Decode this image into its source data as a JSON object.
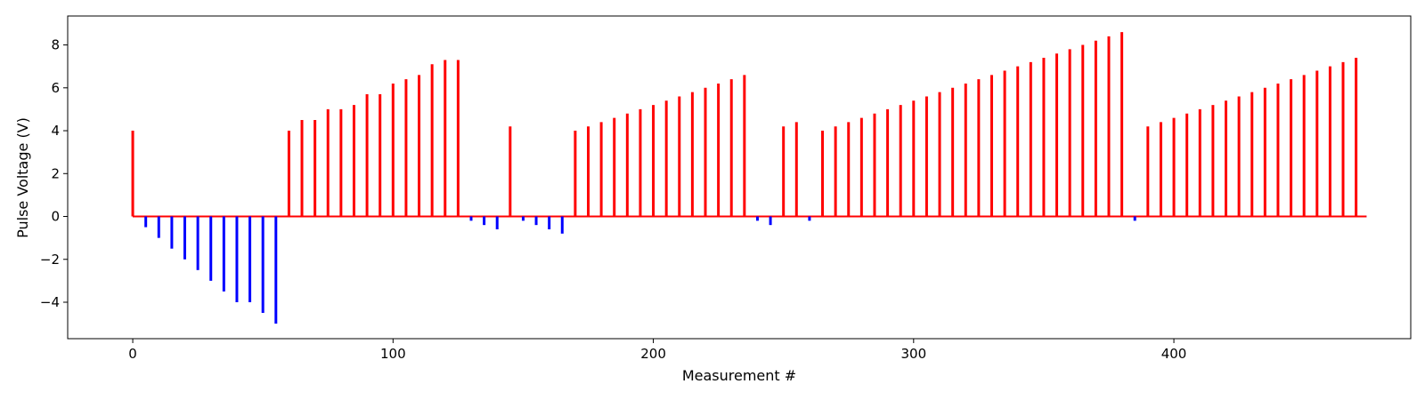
{
  "chart_data": {
    "type": "bar",
    "xlabel": "Measurement #",
    "ylabel": "Pulse Voltage (V)",
    "xlim": [
      -25,
      491
    ],
    "ylim": [
      -5.7,
      9.35
    ],
    "xticks": [
      0,
      100,
      200,
      300,
      400
    ],
    "xtick_labels": [
      "0",
      "100",
      "200",
      "300",
      "400"
    ],
    "yticks": [
      -4,
      -2,
      0,
      2,
      4,
      6,
      8
    ],
    "ytick_labels": [
      "−4",
      "−2",
      "0",
      "2",
      "4",
      "6",
      "8"
    ],
    "baseline_range": [
      0,
      474
    ],
    "colors": {
      "positive": "#ff0000",
      "negative": "#0000ff"
    },
    "pulses": [
      {
        "x": 0,
        "y": 4.0
      },
      {
        "x": 5,
        "y": -0.5
      },
      {
        "x": 10,
        "y": -1.0
      },
      {
        "x": 15,
        "y": -1.5
      },
      {
        "x": 20,
        "y": -2.0
      },
      {
        "x": 25,
        "y": -2.5
      },
      {
        "x": 30,
        "y": -3.0
      },
      {
        "x": 35,
        "y": -3.5
      },
      {
        "x": 40,
        "y": -4.0
      },
      {
        "x": 45,
        "y": -4.0
      },
      {
        "x": 50,
        "y": -4.5
      },
      {
        "x": 55,
        "y": -5.0
      },
      {
        "x": 60,
        "y": 4.0
      },
      {
        "x": 65,
        "y": 4.5
      },
      {
        "x": 70,
        "y": 4.5
      },
      {
        "x": 75,
        "y": 5.0
      },
      {
        "x": 80,
        "y": 5.0
      },
      {
        "x": 85,
        "y": 5.2
      },
      {
        "x": 90,
        "y": 5.7
      },
      {
        "x": 95,
        "y": 5.7
      },
      {
        "x": 100,
        "y": 6.2
      },
      {
        "x": 105,
        "y": 6.4
      },
      {
        "x": 110,
        "y": 6.6
      },
      {
        "x": 115,
        "y": 7.1
      },
      {
        "x": 120,
        "y": 7.3
      },
      {
        "x": 125,
        "y": 7.3
      },
      {
        "x": 130,
        "y": -0.2
      },
      {
        "x": 135,
        "y": -0.4
      },
      {
        "x": 140,
        "y": -0.6
      },
      {
        "x": 145,
        "y": 4.2
      },
      {
        "x": 150,
        "y": -0.2
      },
      {
        "x": 155,
        "y": -0.4
      },
      {
        "x": 160,
        "y": -0.6
      },
      {
        "x": 165,
        "y": -0.8
      },
      {
        "x": 170,
        "y": 4.0
      },
      {
        "x": 175,
        "y": 4.2
      },
      {
        "x": 180,
        "y": 4.4
      },
      {
        "x": 185,
        "y": 4.6
      },
      {
        "x": 190,
        "y": 4.8
      },
      {
        "x": 195,
        "y": 5.0
      },
      {
        "x": 200,
        "y": 5.2
      },
      {
        "x": 205,
        "y": 5.4
      },
      {
        "x": 210,
        "y": 5.6
      },
      {
        "x": 215,
        "y": 5.8
      },
      {
        "x": 220,
        "y": 6.0
      },
      {
        "x": 225,
        "y": 6.2
      },
      {
        "x": 230,
        "y": 6.4
      },
      {
        "x": 235,
        "y": 6.6
      },
      {
        "x": 240,
        "y": -0.2
      },
      {
        "x": 245,
        "y": -0.4
      },
      {
        "x": 250,
        "y": 4.2
      },
      {
        "x": 255,
        "y": 4.4
      },
      {
        "x": 260,
        "y": -0.2
      },
      {
        "x": 265,
        "y": 4.0
      },
      {
        "x": 270,
        "y": 4.2
      },
      {
        "x": 275,
        "y": 4.4
      },
      {
        "x": 280,
        "y": 4.6
      },
      {
        "x": 285,
        "y": 4.8
      },
      {
        "x": 290,
        "y": 5.0
      },
      {
        "x": 295,
        "y": 5.2
      },
      {
        "x": 300,
        "y": 5.4
      },
      {
        "x": 305,
        "y": 5.6
      },
      {
        "x": 310,
        "y": 5.8
      },
      {
        "x": 315,
        "y": 6.0
      },
      {
        "x": 320,
        "y": 6.2
      },
      {
        "x": 325,
        "y": 6.4
      },
      {
        "x": 330,
        "y": 6.6
      },
      {
        "x": 335,
        "y": 6.8
      },
      {
        "x": 340,
        "y": 7.0
      },
      {
        "x": 345,
        "y": 7.2
      },
      {
        "x": 350,
        "y": 7.4
      },
      {
        "x": 355,
        "y": 7.6
      },
      {
        "x": 360,
        "y": 7.8
      },
      {
        "x": 365,
        "y": 8.0
      },
      {
        "x": 370,
        "y": 8.2
      },
      {
        "x": 375,
        "y": 8.4
      },
      {
        "x": 380,
        "y": 8.6
      },
      {
        "x": 385,
        "y": -0.2
      },
      {
        "x": 390,
        "y": 4.2
      },
      {
        "x": 395,
        "y": 4.4
      },
      {
        "x": 400,
        "y": 4.6
      },
      {
        "x": 405,
        "y": 4.8
      },
      {
        "x": 410,
        "y": 5.0
      },
      {
        "x": 415,
        "y": 5.2
      },
      {
        "x": 420,
        "y": 5.4
      },
      {
        "x": 425,
        "y": 5.6
      },
      {
        "x": 430,
        "y": 5.8
      },
      {
        "x": 435,
        "y": 6.0
      },
      {
        "x": 440,
        "y": 6.2
      },
      {
        "x": 445,
        "y": 6.4
      },
      {
        "x": 450,
        "y": 6.6
      },
      {
        "x": 455,
        "y": 6.8
      },
      {
        "x": 460,
        "y": 7.0
      },
      {
        "x": 465,
        "y": 7.2
      },
      {
        "x": 470,
        "y": 7.4
      }
    ]
  }
}
